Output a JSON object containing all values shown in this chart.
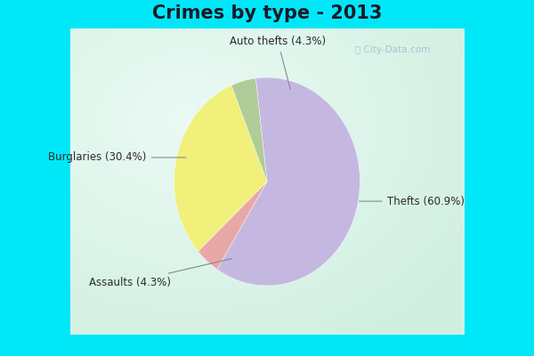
{
  "title": "Crimes by type - 2013",
  "slices": [
    {
      "label": "Thefts (60.9%)",
      "value": 60.9,
      "color": "#c4b8e0"
    },
    {
      "label": "Auto thefts (4.3%)",
      "value": 4.3,
      "color": "#e8a8a8"
    },
    {
      "label": "Burglaries (30.4%)",
      "value": 30.4,
      "color": "#f0f07a"
    },
    {
      "label": "Assaults (4.3%)",
      "value": 4.3,
      "color": "#b0cc98"
    }
  ],
  "background_border": "#00e8f8",
  "background_inner": "#cceedd",
  "title_fontsize": 15,
  "label_fontsize": 8.5,
  "startangle": 97,
  "border_width": 10
}
